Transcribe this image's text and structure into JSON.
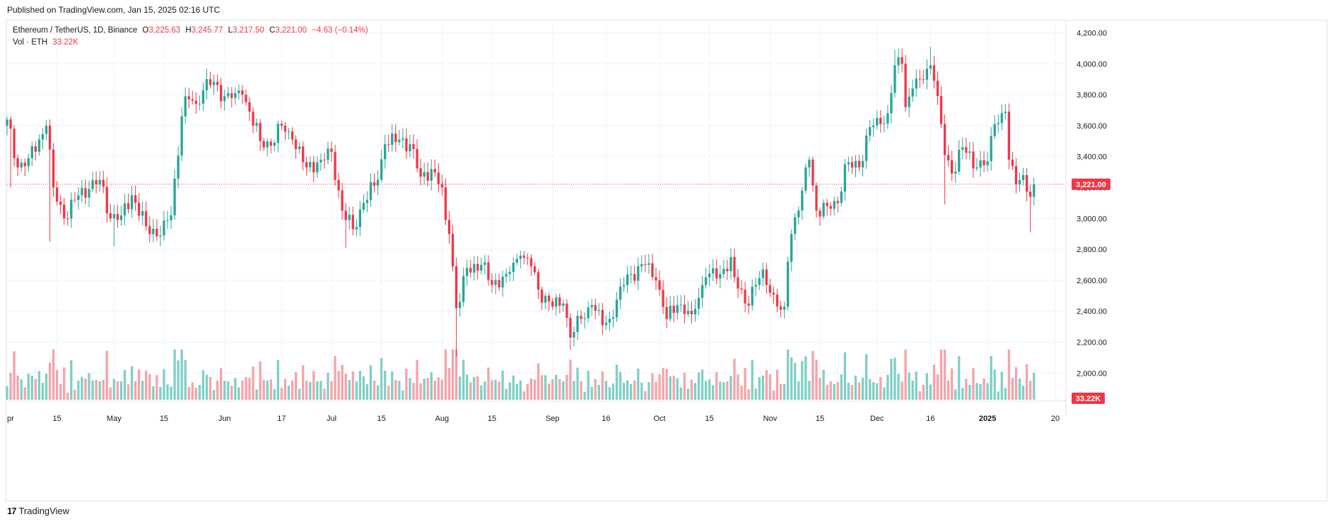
{
  "published": "Published on TradingView.com, Jan 15, 2025 02:16 UTC",
  "legend": {
    "symbol": "Ethereum / TetherUS, 1D, Binance",
    "o_label": "O",
    "o_value": "3,225.63",
    "h_label": "H",
    "h_value": "3,245.77",
    "l_label": "L",
    "l_value": "3,217.50",
    "c_label": "C",
    "c_value": "3,221.00",
    "change": "−4.63 (−0.14%)",
    "vol_label": "Vol · ETH",
    "vol_value": "33.22K"
  },
  "colors": {
    "up": "#26a69a",
    "down": "#f23645",
    "up_vol": "#7fcfc6",
    "down_vol": "#f5a3a9",
    "grid": "#f0f3fa",
    "axis_text": "#131722",
    "tag": "#f23645"
  },
  "footer": {
    "logo_mark": "17",
    "logo_text": "TradingView"
  },
  "chart_data": {
    "type": "candlestick",
    "symbol": "Ethereum / TetherUS",
    "interval": "1D",
    "exchange": "Binance",
    "y_axis": {
      "ticks": [
        2000,
        2200,
        2400,
        2600,
        2800,
        3000,
        3200,
        3400,
        3600,
        3800,
        4000,
        4200
      ],
      "tick_labels": [
        "2,000.00",
        "2,200.00",
        "2,400.00",
        "2,600.00",
        "2,800.00",
        "3,000.00",
        "3,200.00",
        "3,400.00",
        "3,600.00",
        "3,800.00",
        "4,000.00",
        "4,200.00"
      ],
      "range": [
        1910,
        4280
      ],
      "side": "right"
    },
    "x_axis": {
      "start": "2024-04-01",
      "end": "2025-01-21",
      "ticks": [
        {
          "date": "2024-04-01",
          "label": "pr"
        },
        {
          "date": "2024-04-15",
          "label": "15"
        },
        {
          "date": "2024-05-01",
          "label": "May"
        },
        {
          "date": "2024-05-15",
          "label": "15"
        },
        {
          "date": "2024-06-01",
          "label": "Jun"
        },
        {
          "date": "2024-06-17",
          "label": "17"
        },
        {
          "date": "2024-07-01",
          "label": "Jul"
        },
        {
          "date": "2024-07-15",
          "label": "15"
        },
        {
          "date": "2024-08-01",
          "label": "Aug"
        },
        {
          "date": "2024-08-15",
          "label": "15"
        },
        {
          "date": "2024-09-01",
          "label": "Sep"
        },
        {
          "date": "2024-09-16",
          "label": "16"
        },
        {
          "date": "2024-10-01",
          "label": "Oct"
        },
        {
          "date": "2024-10-15",
          "label": "15"
        },
        {
          "date": "2024-11-01",
          "label": "Nov"
        },
        {
          "date": "2024-11-15",
          "label": "15"
        },
        {
          "date": "2024-12-01",
          "label": "Dec"
        },
        {
          "date": "2024-12-16",
          "label": "16"
        },
        {
          "date": "2025-01-01",
          "label": "2025"
        },
        {
          "date": "2025-01-20",
          "label": "20"
        }
      ]
    },
    "last_price": 3221,
    "last_price_label": "3,221.00",
    "last_volume_label": "33.22K",
    "grid": true,
    "close_anchors": [
      {
        "date": "2024-04-01",
        "close": 3640
      },
      {
        "date": "2024-04-04",
        "close": 3330
      },
      {
        "date": "2024-04-07",
        "close": 3390
      },
      {
        "date": "2024-04-10",
        "close": 3510
      },
      {
        "date": "2024-04-12",
        "close": 3600
      },
      {
        "date": "2024-04-14",
        "close": 3200
      },
      {
        "date": "2024-04-17",
        "close": 3000
      },
      {
        "date": "2024-04-21",
        "close": 3150
      },
      {
        "date": "2024-04-24",
        "close": 3190
      },
      {
        "date": "2024-04-27",
        "close": 3250
      },
      {
        "date": "2024-04-30",
        "close": 3000
      },
      {
        "date": "2024-05-03",
        "close": 3020
      },
      {
        "date": "2024-05-06",
        "close": 3150
      },
      {
        "date": "2024-05-10",
        "close": 2950
      },
      {
        "date": "2024-05-14",
        "close": 2890
      },
      {
        "date": "2024-05-17",
        "close": 3020
      },
      {
        "date": "2024-05-20",
        "close": 3660
      },
      {
        "date": "2024-05-21",
        "close": 3790
      },
      {
        "date": "2024-05-24",
        "close": 3740
      },
      {
        "date": "2024-05-27",
        "close": 3900
      },
      {
        "date": "2024-06-01",
        "close": 3790
      },
      {
        "date": "2024-06-04",
        "close": 3810
      },
      {
        "date": "2024-06-06",
        "close": 3800
      },
      {
        "date": "2024-06-08",
        "close": 3690
      },
      {
        "date": "2024-06-11",
        "close": 3500
      },
      {
        "date": "2024-06-14",
        "close": 3470
      },
      {
        "date": "2024-06-17",
        "close": 3600
      },
      {
        "date": "2024-06-20",
        "close": 3510
      },
      {
        "date": "2024-06-24",
        "close": 3330
      },
      {
        "date": "2024-06-28",
        "close": 3380
      },
      {
        "date": "2024-07-01",
        "close": 3430
      },
      {
        "date": "2024-07-04",
        "close": 3050
      },
      {
        "date": "2024-07-07",
        "close": 2930
      },
      {
        "date": "2024-07-10",
        "close": 3100
      },
      {
        "date": "2024-07-14",
        "close": 3250
      },
      {
        "date": "2024-07-16",
        "close": 3480
      },
      {
        "date": "2024-07-20",
        "close": 3510
      },
      {
        "date": "2024-07-23",
        "close": 3480
      },
      {
        "date": "2024-07-26",
        "close": 3270
      },
      {
        "date": "2024-07-29",
        "close": 3320
      },
      {
        "date": "2024-08-01",
        "close": 3200
      },
      {
        "date": "2024-08-02",
        "close": 2990
      },
      {
        "date": "2024-08-03",
        "close": 2900
      },
      {
        "date": "2024-08-04",
        "close": 2690
      },
      {
        "date": "2024-08-05",
        "close": 2420
      },
      {
        "date": "2024-08-06",
        "close": 2460
      },
      {
        "date": "2024-08-08",
        "close": 2680
      },
      {
        "date": "2024-08-12",
        "close": 2700
      },
      {
        "date": "2024-08-15",
        "close": 2570
      },
      {
        "date": "2024-08-19",
        "close": 2640
      },
      {
        "date": "2024-08-23",
        "close": 2760
      },
      {
        "date": "2024-08-26",
        "close": 2690
      },
      {
        "date": "2024-08-28",
        "close": 2540
      },
      {
        "date": "2024-09-01",
        "close": 2430
      },
      {
        "date": "2024-09-04",
        "close": 2450
      },
      {
        "date": "2024-09-06",
        "close": 2230
      },
      {
        "date": "2024-09-09",
        "close": 2350
      },
      {
        "date": "2024-09-12",
        "close": 2440
      },
      {
        "date": "2024-09-15",
        "close": 2310
      },
      {
        "date": "2024-09-18",
        "close": 2360
      },
      {
        "date": "2024-09-20",
        "close": 2560
      },
      {
        "date": "2024-09-23",
        "close": 2640
      },
      {
        "date": "2024-09-27",
        "close": 2700
      },
      {
        "date": "2024-09-30",
        "close": 2600
      },
      {
        "date": "2024-10-03",
        "close": 2350
      },
      {
        "date": "2024-10-06",
        "close": 2440
      },
      {
        "date": "2024-10-10",
        "close": 2380
      },
      {
        "date": "2024-10-14",
        "close": 2620
      },
      {
        "date": "2024-10-18",
        "close": 2640
      },
      {
        "date": "2024-10-21",
        "close": 2750
      },
      {
        "date": "2024-10-22",
        "close": 2620
      },
      {
        "date": "2024-10-25",
        "close": 2450
      },
      {
        "date": "2024-10-28",
        "close": 2570
      },
      {
        "date": "2024-10-30",
        "close": 2670
      },
      {
        "date": "2024-11-01",
        "close": 2520
      },
      {
        "date": "2024-11-04",
        "close": 2410
      },
      {
        "date": "2024-11-05",
        "close": 2430
      },
      {
        "date": "2024-11-06",
        "close": 2720
      },
      {
        "date": "2024-11-07",
        "close": 2900
      },
      {
        "date": "2024-11-10",
        "close": 3180
      },
      {
        "date": "2024-11-12",
        "close": 3380
      },
      {
        "date": "2024-11-14",
        "close": 3050
      },
      {
        "date": "2024-11-17",
        "close": 3080
      },
      {
        "date": "2024-11-20",
        "close": 3100
      },
      {
        "date": "2024-11-22",
        "close": 3350
      },
      {
        "date": "2024-11-26",
        "close": 3330
      },
      {
        "date": "2024-11-29",
        "close": 3590
      },
      {
        "date": "2024-12-02",
        "close": 3610
      },
      {
        "date": "2024-12-04",
        "close": 3680
      },
      {
        "date": "2024-12-06",
        "close": 3990
      },
      {
        "date": "2024-12-08",
        "close": 4000
      },
      {
        "date": "2024-12-09",
        "close": 3720
      },
      {
        "date": "2024-12-11",
        "close": 3840
      },
      {
        "date": "2024-12-13",
        "close": 3900
      },
      {
        "date": "2024-12-16",
        "close": 3990
      },
      {
        "date": "2024-12-17",
        "close": 3890
      },
      {
        "date": "2024-12-19",
        "close": 3610
      },
      {
        "date": "2024-12-20",
        "close": 3410
      },
      {
        "date": "2024-12-22",
        "close": 3290
      },
      {
        "date": "2024-12-25",
        "close": 3460
      },
      {
        "date": "2024-12-29",
        "close": 3330
      },
      {
        "date": "2025-01-01",
        "close": 3370
      },
      {
        "date": "2025-01-03",
        "close": 3610
      },
      {
        "date": "2025-01-06",
        "close": 3690
      },
      {
        "date": "2025-01-07",
        "close": 3380
      },
      {
        "date": "2025-01-09",
        "close": 3220
      },
      {
        "date": "2025-01-11",
        "close": 3280
      },
      {
        "date": "2025-01-13",
        "close": 3140
      },
      {
        "date": "2025-01-14",
        "close": 3221
      }
    ],
    "wick_extremes": [
      {
        "date": "2024-04-02",
        "low": 3200
      },
      {
        "date": "2024-04-13",
        "low": 2850
      },
      {
        "date": "2024-05-01",
        "low": 2820
      },
      {
        "date": "2024-05-27",
        "high": 3970
      },
      {
        "date": "2024-07-05",
        "low": 2810
      },
      {
        "date": "2024-08-05",
        "low": 2110
      },
      {
        "date": "2024-09-06",
        "low": 2150
      },
      {
        "date": "2024-12-06",
        "high": 4090
      },
      {
        "date": "2024-12-16",
        "high": 4110
      },
      {
        "date": "2024-12-20",
        "low": 3090
      },
      {
        "date": "2025-01-06",
        "high": 3740
      },
      {
        "date": "2025-01-13",
        "low": 2910
      }
    ]
  }
}
